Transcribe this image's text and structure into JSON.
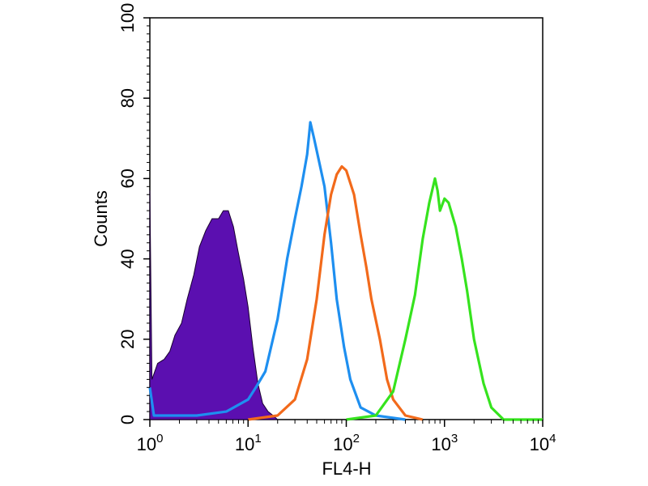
{
  "chart_data": {
    "type": "histogram",
    "xlabel": "FL4-H",
    "ylabel": "Counts",
    "x_scale": "log",
    "xlim": [
      1,
      10000
    ],
    "ylim": [
      0,
      100
    ],
    "x_ticks": [
      {
        "value": 1,
        "base": "10",
        "exp": "0"
      },
      {
        "value": 10,
        "base": "10",
        "exp": "1"
      },
      {
        "value": 100,
        "base": "10",
        "exp": "2"
      },
      {
        "value": 1000,
        "base": "10",
        "exp": "3"
      },
      {
        "value": 10000,
        "base": "10",
        "exp": "4"
      }
    ],
    "y_ticks": [
      "0",
      "20",
      "40",
      "60",
      "80",
      "100"
    ],
    "grid": false,
    "series": [
      {
        "color": "#5b0fb0",
        "filled": true,
        "points": [
          [
            1,
            57
          ],
          [
            1.05,
            10
          ],
          [
            1.2,
            14
          ],
          [
            1.4,
            15
          ],
          [
            1.6,
            17
          ],
          [
            1.8,
            21
          ],
          [
            2.1,
            24
          ],
          [
            2.4,
            30
          ],
          [
            2.8,
            36
          ],
          [
            3.2,
            43
          ],
          [
            3.7,
            47
          ],
          [
            4.3,
            50
          ],
          [
            5.0,
            50
          ],
          [
            5.6,
            52
          ],
          [
            6.3,
            52
          ],
          [
            7.1,
            48
          ],
          [
            7.9,
            42
          ],
          [
            9.0,
            35
          ],
          [
            10,
            28
          ],
          [
            11.2,
            18
          ],
          [
            12.6,
            9
          ],
          [
            14.1,
            4
          ],
          [
            16,
            2
          ],
          [
            18,
            1
          ],
          [
            20,
            0
          ]
        ]
      },
      {
        "color": "#1e8ff0",
        "filled": false,
        "points": [
          [
            1,
            8
          ],
          [
            1.1,
            1
          ],
          [
            3,
            1
          ],
          [
            6,
            2
          ],
          [
            10,
            5
          ],
          [
            12,
            8
          ],
          [
            15,
            12
          ],
          [
            20,
            25
          ],
          [
            25,
            40
          ],
          [
            30,
            50
          ],
          [
            35,
            58
          ],
          [
            40,
            66
          ],
          [
            43,
            74
          ],
          [
            47,
            70
          ],
          [
            52,
            65
          ],
          [
            60,
            58
          ],
          [
            70,
            44
          ],
          [
            80,
            30
          ],
          [
            95,
            18
          ],
          [
            110,
            10
          ],
          [
            140,
            3
          ],
          [
            200,
            1
          ],
          [
            400,
            0
          ]
        ]
      },
      {
        "color": "#f26a1b",
        "filled": false,
        "points": [
          [
            10,
            0
          ],
          [
            20,
            1
          ],
          [
            30,
            5
          ],
          [
            40,
            15
          ],
          [
            50,
            30
          ],
          [
            60,
            46
          ],
          [
            70,
            56
          ],
          [
            80,
            61
          ],
          [
            90,
            63
          ],
          [
            100,
            62
          ],
          [
            120,
            56
          ],
          [
            140,
            46
          ],
          [
            160,
            38
          ],
          [
            180,
            30
          ],
          [
            220,
            20
          ],
          [
            260,
            10
          ],
          [
            300,
            5
          ],
          [
            400,
            1
          ],
          [
            600,
            0
          ]
        ]
      },
      {
        "color": "#36e31e",
        "filled": false,
        "points": [
          [
            100,
            0
          ],
          [
            200,
            1
          ],
          [
            300,
            7
          ],
          [
            400,
            20
          ],
          [
            500,
            31
          ],
          [
            600,
            45
          ],
          [
            700,
            54
          ],
          [
            800,
            60
          ],
          [
            850,
            57
          ],
          [
            900,
            52
          ],
          [
            1000,
            55
          ],
          [
            1100,
            54
          ],
          [
            1300,
            48
          ],
          [
            1500,
            40
          ],
          [
            1700,
            32
          ],
          [
            2000,
            20
          ],
          [
            2500,
            9
          ],
          [
            3000,
            3
          ],
          [
            4000,
            0
          ],
          [
            10000,
            0
          ]
        ]
      }
    ]
  }
}
